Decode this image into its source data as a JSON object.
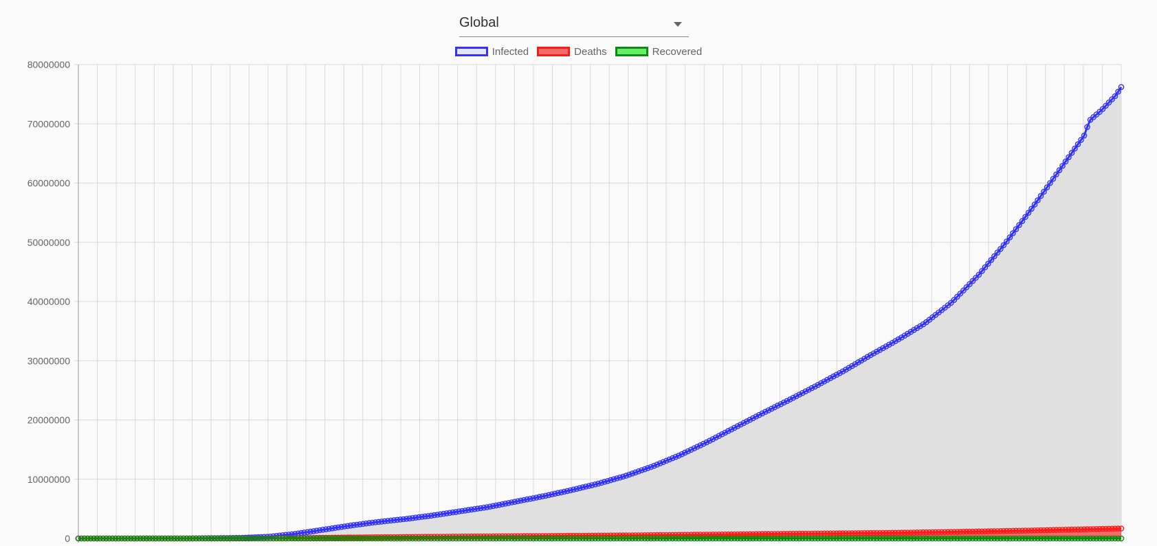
{
  "selector": {
    "value": "Global"
  },
  "colors": {
    "infected_border": "#3333ff",
    "infected_fill": "#e5e5f5",
    "deaths_border": "#ff1a1a",
    "deaths_fill": "#f06b6b",
    "recovered_border": "#0e8a0e",
    "recovered_fill": "#66ee66",
    "area_fill": "#e0e0e0",
    "grid": "#d9d9d9",
    "axis": "#999999"
  },
  "chart_data": {
    "type": "line",
    "title": "",
    "xlabel": "",
    "ylabel": "",
    "ylim": [
      0,
      80000000
    ],
    "y_ticks": [
      "80000000",
      "70000000",
      "60000000",
      "50000000",
      "40000000",
      "30000000",
      "20000000",
      "10000000",
      "0"
    ],
    "grid": true,
    "legend": "top-center",
    "point_count": 338,
    "series": [
      {
        "name": "Infected",
        "key": "infected",
        "anchors": [
          [
            0,
            555
          ],
          [
            40,
            10000
          ],
          [
            60,
            100000
          ],
          [
            70,
            300000
          ],
          [
            80,
            800000
          ],
          [
            90,
            1500000
          ],
          [
            100,
            2200000
          ],
          [
            110,
            2800000
          ],
          [
            120,
            3300000
          ],
          [
            130,
            3900000
          ],
          [
            140,
            4600000
          ],
          [
            150,
            5300000
          ],
          [
            160,
            6200000
          ],
          [
            170,
            7100000
          ],
          [
            180,
            8100000
          ],
          [
            190,
            9200000
          ],
          [
            200,
            10500000
          ],
          [
            210,
            12100000
          ],
          [
            220,
            14000000
          ],
          [
            230,
            16200000
          ],
          [
            240,
            18600000
          ],
          [
            250,
            21000000
          ],
          [
            260,
            23300000
          ],
          [
            270,
            25700000
          ],
          [
            280,
            28200000
          ],
          [
            290,
            30900000
          ],
          [
            300,
            33500000
          ],
          [
            310,
            36300000
          ],
          [
            320,
            39900000
          ],
          [
            330,
            44600000
          ],
          [
            340,
            50100000
          ],
          [
            350,
            56200000
          ],
          [
            360,
            62600000
          ],
          [
            369,
            68400000
          ],
          [
            370,
            70400000
          ],
          [
            375,
            72400000
          ],
          [
            380,
            74800000
          ],
          [
            382,
            76200000
          ]
        ]
      },
      {
        "name": "Deaths",
        "key": "deaths",
        "anchors": [
          [
            0,
            17
          ],
          [
            60,
            5000
          ],
          [
            70,
            20000
          ],
          [
            80,
            60000
          ],
          [
            90,
            110000
          ],
          [
            100,
            170000
          ],
          [
            120,
            250000
          ],
          [
            140,
            320000
          ],
          [
            160,
            380000
          ],
          [
            180,
            450000
          ],
          [
            200,
            510000
          ],
          [
            220,
            600000
          ],
          [
            240,
            690000
          ],
          [
            260,
            780000
          ],
          [
            280,
            860000
          ],
          [
            300,
            960000
          ],
          [
            320,
            1100000
          ],
          [
            340,
            1260000
          ],
          [
            360,
            1450000
          ],
          [
            370,
            1560000
          ],
          [
            382,
            1680000
          ]
        ]
      },
      {
        "name": "Recovered",
        "key": "recovered",
        "anchors": [
          [
            0,
            0
          ],
          [
            382,
            0
          ]
        ]
      }
    ]
  }
}
